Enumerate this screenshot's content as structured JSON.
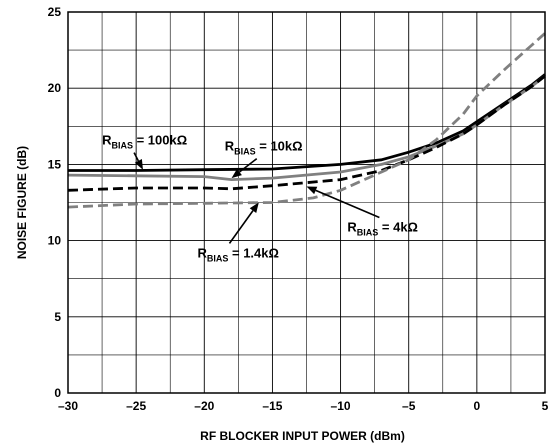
{
  "chart_data": {
    "type": "line",
    "title": "",
    "xlabel": "RF BLOCKER INPUT POWER (dBm)",
    "ylabel": "NOISE FIGURE (dB)",
    "xlim": [
      -30,
      5
    ],
    "ylim": [
      0,
      25
    ],
    "xticks": [
      -30,
      -25,
      -20,
      -15,
      -10,
      -5,
      0,
      5
    ],
    "yticks": [
      0,
      5,
      10,
      15,
      20,
      25
    ],
    "xtick_labels": [
      "–30",
      "–25",
      "–20",
      "–15",
      "–10",
      "–5",
      "0",
      "5"
    ],
    "ytick_labels": [
      "0",
      "5",
      "10",
      "15",
      "20",
      "25"
    ],
    "grid": true,
    "series": [
      {
        "name": "RBIAS = 100kΩ",
        "style": "solid",
        "color": "#000000",
        "x": [
          -30,
          -25,
          -20,
          -15,
          -10,
          -7,
          -5,
          -3,
          -1,
          0,
          2,
          4,
          5
        ],
        "y": [
          14.6,
          14.6,
          14.65,
          14.7,
          15.0,
          15.3,
          15.8,
          16.4,
          17.2,
          17.8,
          19.0,
          20.2,
          20.9
        ]
      },
      {
        "name": "RBIAS = 10kΩ",
        "style": "solid",
        "color": "#808080",
        "x": [
          -30,
          -25,
          -20,
          -18,
          -15,
          -10,
          -7,
          -5,
          -3,
          -1,
          0,
          2,
          4,
          5
        ],
        "y": [
          14.3,
          14.25,
          14.2,
          14.0,
          14.1,
          14.5,
          15.0,
          15.5,
          16.2,
          17.0,
          17.6,
          18.9,
          20.1,
          20.8
        ]
      },
      {
        "name": "RBIAS = 4kΩ",
        "style": "dashed",
        "color": "#000000",
        "x": [
          -30,
          -25,
          -20,
          -18,
          -15,
          -10,
          -7,
          -5,
          -3,
          -1,
          0,
          2,
          4,
          5
        ],
        "y": [
          13.3,
          13.45,
          13.45,
          13.4,
          13.6,
          14.0,
          14.6,
          15.3,
          16.1,
          17.0,
          17.6,
          18.9,
          20.1,
          20.8
        ]
      },
      {
        "name": "RBIAS = 1.4kΩ",
        "style": "dashed",
        "color": "#808080",
        "x": [
          -30,
          -25,
          -20,
          -15,
          -12,
          -10,
          -8,
          -5,
          -3,
          -1,
          0,
          2,
          4,
          5
        ],
        "y": [
          12.2,
          12.4,
          12.45,
          12.5,
          12.8,
          13.3,
          14.1,
          15.3,
          16.6,
          18.3,
          19.5,
          21.2,
          22.8,
          23.6
        ]
      }
    ],
    "annotations": [
      {
        "main": "R",
        "sub": "BIAS",
        "rest": " = 100kΩ",
        "x": -27.5,
        "y": 16.3,
        "arrow_to": [
          -24.5,
          14.65
        ]
      },
      {
        "main": "R",
        "sub": "BIAS",
        "rest": " = 10kΩ",
        "x": -18.5,
        "y": 15.9,
        "arrow_to": [
          -18.0,
          14.1
        ]
      },
      {
        "main": "R",
        "sub": "BIAS",
        "rest": " = 4kΩ",
        "x": -9.5,
        "y": 10.6,
        "arrow_to": [
          -12.5,
          13.55
        ]
      },
      {
        "main": "R",
        "sub": "BIAS",
        "rest": " = 1.4kΩ",
        "x": -20.5,
        "y": 8.9,
        "arrow_to": [
          -16.0,
          12.5
        ]
      }
    ]
  }
}
